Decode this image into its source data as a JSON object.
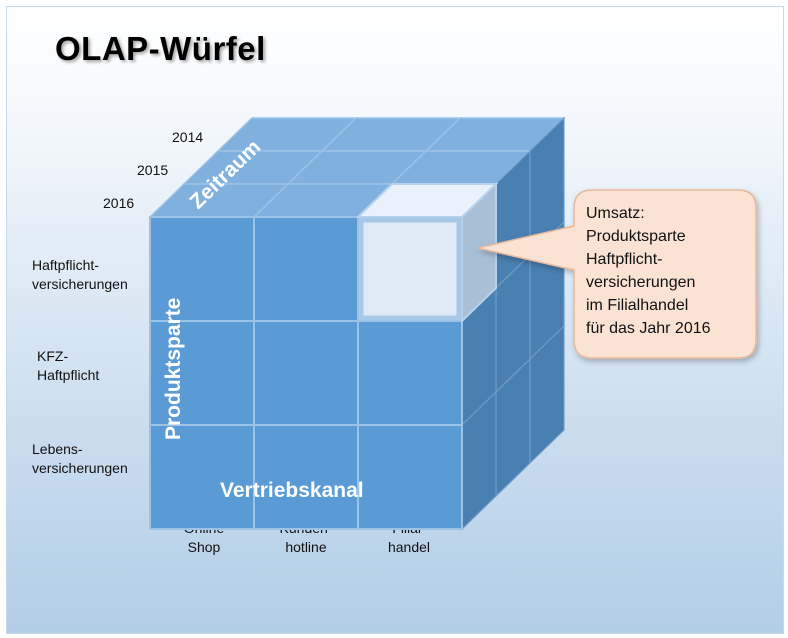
{
  "title": "OLAP-Würfel",
  "years": [
    "2014",
    "2015",
    "2016"
  ],
  "products": [
    [
      "Haftpflicht-",
      "versicherungen"
    ],
    [
      "KFZ-",
      "Haftpflicht"
    ],
    [
      "Lebens-",
      "versicherungen"
    ]
  ],
  "channels": [
    [
      "Online",
      "Shop"
    ],
    [
      "Kunden-",
      "hotline"
    ],
    [
      "Filial-",
      "handel"
    ]
  ],
  "dimension_labels": {
    "time": "Zeitraum",
    "product": "Produktsparte",
    "channel": "Vertriebskanal"
  },
  "callout": {
    "lines": [
      "Umsatz:",
      "Produktsparte",
      "Haftpflicht-",
      "versicherungen",
      "im Filialhandel",
      "für das Jahr 2016"
    ]
  },
  "colors": {
    "front": "#5b9bd5",
    "top": "#7fb0de",
    "side": "#4a7fb2",
    "edge": "#9cc2e5",
    "highlight": "#dfe9f5",
    "callout_fill": "#fbe3d4",
    "callout_border": "#e7b99a"
  }
}
